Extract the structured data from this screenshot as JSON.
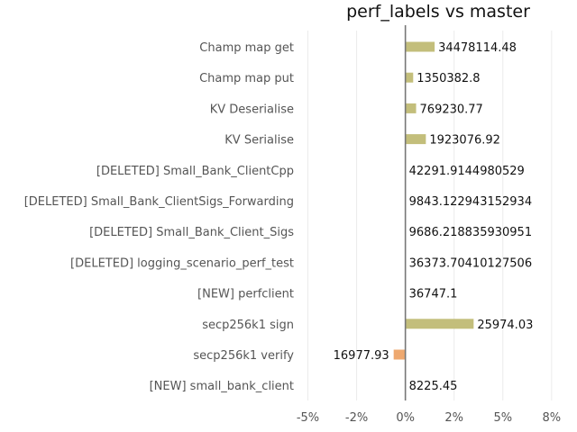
{
  "chart_data": {
    "type": "bar",
    "orientation": "horizontal",
    "title": "perf_labels vs master",
    "xlabel": "",
    "ylabel": "",
    "xlim": [
      -5.3,
      8.2
    ],
    "xticks": [
      -5,
      -2.5,
      0,
      2.5,
      5,
      7.5
    ],
    "xtick_labels": [
      "-5%",
      "-2%",
      "0%",
      "2%",
      "5%",
      "8%"
    ],
    "grid": "vertical",
    "colors": {
      "positive": "#c3be7b",
      "negative": "#eea86f",
      "zero_line": "#777777"
    },
    "categories": [
      "Champ map get",
      "Champ map put",
      "KV Deserialise",
      "KV Serialise",
      "[DELETED] Small_Bank_ClientCpp",
      "[DELETED] Small_Bank_ClientSigs_Forwarding",
      "[DELETED] Small_Bank_Client_Sigs",
      "[DELETED] logging_scenario_perf_test",
      "[NEW] perfclient",
      "secp256k1 sign",
      "secp256k1 verify",
      "[NEW] small_bank_client"
    ],
    "values": [
      1.5,
      0.4,
      0.55,
      1.05,
      0,
      0,
      0,
      0,
      0,
      3.5,
      -0.6,
      0
    ],
    "value_labels": [
      "34478114.48",
      "1350382.8",
      "769230.77",
      "1923076.92",
      "42291.9144980529",
      "9843.122943152934",
      "9686.218835930951",
      "36373.70410127506",
      "36747.1",
      "25974.03",
      "16977.93",
      "8225.45"
    ]
  }
}
